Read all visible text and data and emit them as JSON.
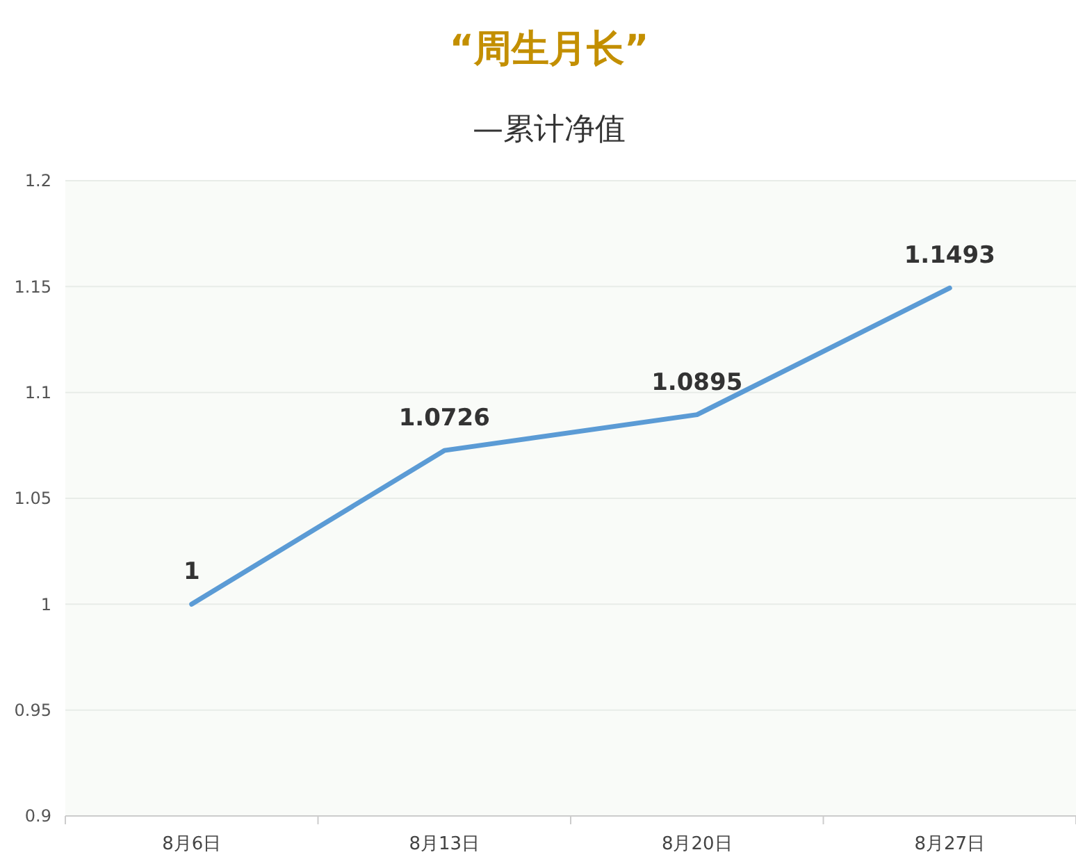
{
  "chart_data": {
    "type": "line",
    "title": "“周生月长”",
    "subtitle": "—累计净值",
    "categories": [
      "8月6日",
      "8月13日",
      "8月20日",
      "8月27日"
    ],
    "series": [
      {
        "color": "#5b9bd5",
        "values": [
          1,
          1.0726,
          1.0895,
          1.1493
        ]
      }
    ],
    "ylim": [
      0.9,
      1.2
    ],
    "yticks": [
      0.9,
      0.95,
      1,
      1.05,
      1.1,
      1.15,
      1.2
    ],
    "grid": "y",
    "data_labels": true,
    "marker": "none",
    "line_style": "solid"
  }
}
